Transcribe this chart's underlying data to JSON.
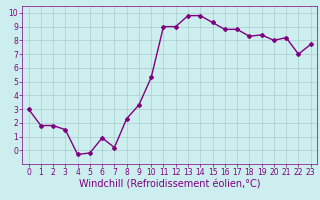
{
  "x": [
    0,
    1,
    2,
    3,
    4,
    5,
    6,
    7,
    8,
    9,
    10,
    11,
    12,
    13,
    14,
    15,
    16,
    17,
    18,
    19,
    20,
    21,
    22,
    23
  ],
  "y": [
    3.0,
    1.8,
    1.8,
    1.5,
    -0.3,
    -0.2,
    0.9,
    0.2,
    2.3,
    3.3,
    5.3,
    9.0,
    9.0,
    9.8,
    9.8,
    9.3,
    8.8,
    8.8,
    8.3,
    8.4,
    8.0,
    8.2,
    7.0,
    7.7
  ],
  "line_color": "#800080",
  "marker": "D",
  "marker_size": 2,
  "bg_color": "#cceeee",
  "grid_color": "#aacccc",
  "xlabel": "Windchill (Refroidissement éolien,°C)",
  "xlabel_color": "#800080",
  "ylim": [
    -1,
    10.5
  ],
  "xlim": [
    -0.5,
    23.5
  ],
  "yticks": [
    0,
    1,
    2,
    3,
    4,
    5,
    6,
    7,
    8,
    9,
    10
  ],
  "xticks": [
    0,
    1,
    2,
    3,
    4,
    5,
    6,
    7,
    8,
    9,
    10,
    11,
    12,
    13,
    14,
    15,
    16,
    17,
    18,
    19,
    20,
    21,
    22,
    23
  ],
  "tick_color": "#800080",
  "tick_label_fontsize": 5.5,
  "xlabel_fontsize": 7.0,
  "line_width": 1.0
}
